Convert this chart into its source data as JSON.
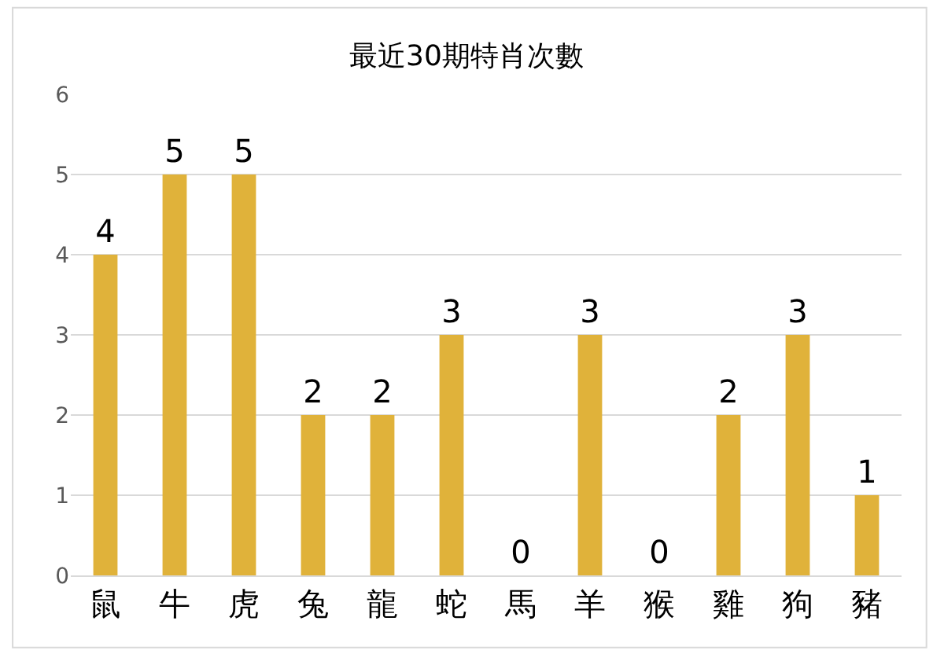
{
  "chart_data": {
    "type": "bar",
    "title": "最近30期特肖次數",
    "categories": [
      "鼠",
      "牛",
      "虎",
      "兔",
      "龍",
      "蛇",
      "馬",
      "羊",
      "猴",
      "雞",
      "狗",
      "豬"
    ],
    "values": [
      4,
      5,
      5,
      2,
      2,
      3,
      0,
      3,
      0,
      2,
      3,
      1
    ],
    "color": "#e0b23a",
    "ylim": [
      0,
      6
    ],
    "yticks": [
      0,
      1,
      2,
      3,
      4,
      5,
      6
    ],
    "grid": "y",
    "data_labels": true
  }
}
